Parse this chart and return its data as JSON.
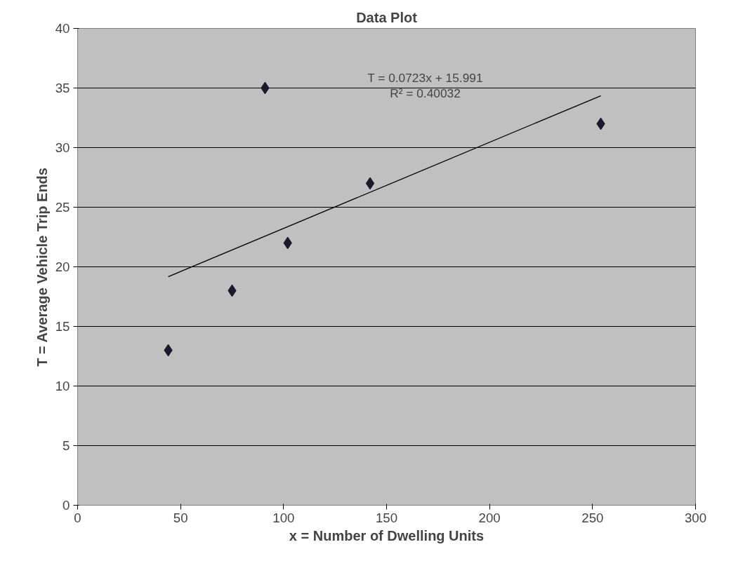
{
  "chart_data": {
    "type": "scatter",
    "title": "Data Plot",
    "xlabel": "x = Number of Dwelling Units",
    "ylabel": "T = Average Vehicle Trip Ends",
    "series": [
      {
        "color": "#1a1a2e",
        "marker": "diamond",
        "x": [
          44,
          75,
          91,
          102,
          142,
          254
        ],
        "values": [
          13,
          18,
          35,
          22,
          27,
          32
        ]
      },
      {
        "type": "line",
        "marker": "none",
        "color": "#000000",
        "x": [
          44,
          254
        ],
        "values": [
          19.17,
          34.35
        ]
      }
    ],
    "annotations": [
      "T = 0.0723x + 15.991",
      "R² = 0.40032"
    ],
    "xlim": [
      0,
      300
    ],
    "xticks": [
      0,
      50,
      100,
      150,
      200,
      250,
      300
    ],
    "ylim": [
      0,
      40
    ],
    "yticks": [
      0,
      5,
      10,
      15,
      20,
      25,
      30,
      35,
      40
    ],
    "grid": "y",
    "line_style": "solid"
  }
}
